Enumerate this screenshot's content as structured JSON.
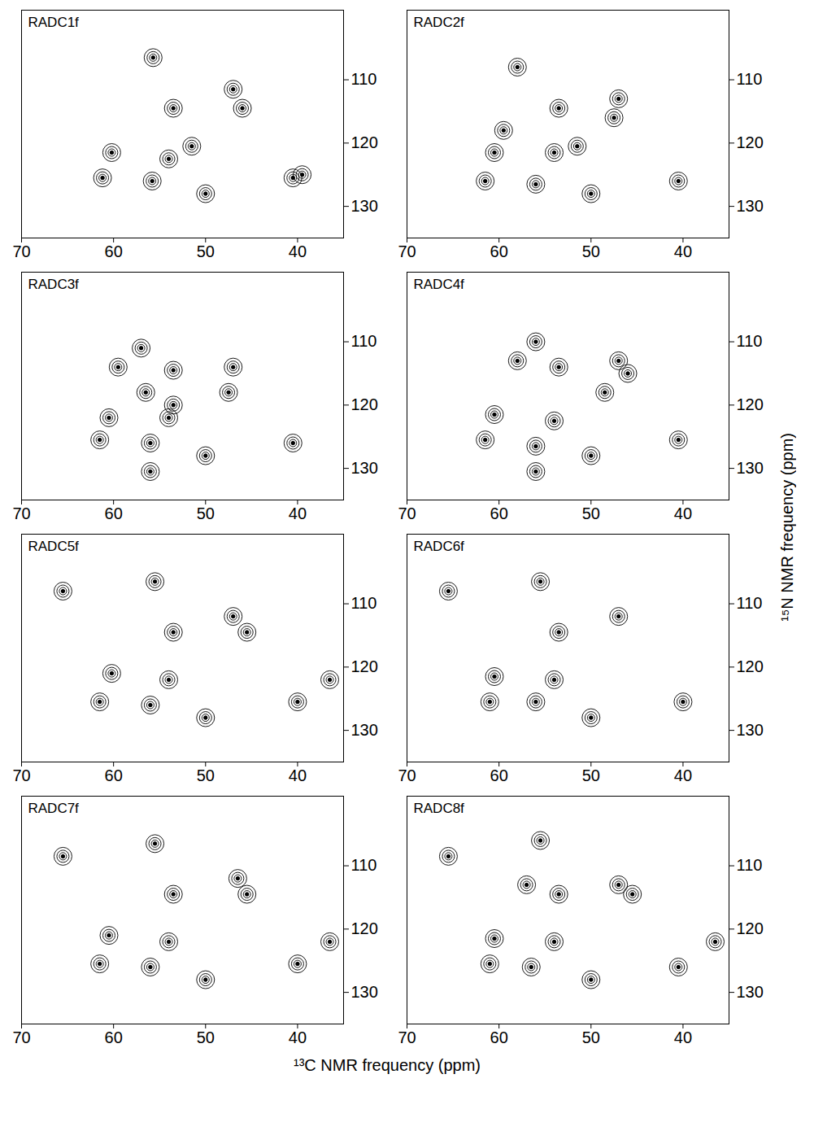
{
  "chart_data": {
    "type": "scatter",
    "x_label": "¹³C NMR frequency (ppm)",
    "y_label": "¹⁵N NMR frequency (ppm)",
    "xlim": [
      70,
      35
    ],
    "ylim": [
      135,
      99
    ],
    "xticks": [
      70,
      60,
      50,
      40
    ],
    "yticks": [
      110,
      120,
      130
    ],
    "color": "#000000",
    "panels": [
      {
        "title": "RADC1f",
        "x": [
          61.2,
          60.2,
          55.7,
          53.5,
          55.8,
          54,
          50,
          47,
          46,
          40.5,
          39.5,
          51.5
        ],
        "values": [
          125.5,
          121.5,
          106.5,
          114.5,
          126,
          122.5,
          128,
          111.5,
          114.5,
          125.5,
          125,
          120.5
        ]
      },
      {
        "title": "RADC2f",
        "x": [
          61.5,
          60.5,
          59.5,
          58,
          53.5,
          56,
          54,
          50,
          47,
          47.5,
          40.5,
          51.5
        ],
        "values": [
          126,
          121.5,
          118,
          108,
          114.5,
          126.5,
          121.5,
          128,
          113,
          116,
          126,
          120.5
        ]
      },
      {
        "title": "RADC3f",
        "x": [
          61.5,
          60.5,
          57,
          59.5,
          53.5,
          56,
          54,
          53.5,
          56,
          50,
          47,
          47.5,
          40.5,
          56.5
        ],
        "values": [
          125.5,
          122,
          111,
          114,
          114.5,
          126,
          122,
          120,
          130.5,
          128,
          114,
          118,
          126,
          118
        ]
      },
      {
        "title": "RADC4f",
        "x": [
          61.5,
          60.5,
          56,
          53.5,
          56,
          54,
          56,
          50,
          47,
          46,
          48.5,
          40.5,
          58
        ],
        "values": [
          125.5,
          121.5,
          110,
          114,
          126.5,
          122.5,
          130.5,
          128,
          113,
          115,
          118,
          125.5,
          113
        ]
      },
      {
        "title": "RADC5f",
        "x": [
          61.5,
          60.2,
          55.5,
          53.5,
          56,
          54,
          50,
          47,
          45.5,
          40,
          36.5,
          65.5
        ],
        "values": [
          125.5,
          121,
          106.5,
          114.5,
          126,
          122,
          128,
          112,
          114.5,
          125.5,
          122,
          108
        ]
      },
      {
        "title": "RADC6f",
        "x": [
          61,
          60.5,
          55.5,
          53.5,
          56,
          54,
          50,
          47,
          40,
          65.5
        ],
        "values": [
          125.5,
          121.5,
          106.5,
          114.5,
          125.5,
          122,
          128,
          112,
          125.5,
          108
        ]
      },
      {
        "title": "RADC7f",
        "x": [
          61.5,
          60.5,
          55.5,
          53.5,
          56,
          54,
          50,
          46.5,
          45.5,
          40,
          36.5,
          65.5
        ],
        "values": [
          125.5,
          121,
          106.5,
          114.5,
          126,
          122,
          128,
          112,
          114.5,
          125.5,
          122,
          108.5
        ]
      },
      {
        "title": "RADC8f",
        "x": [
          61,
          60.5,
          55.5,
          53.5,
          56.5,
          54,
          50,
          47,
          45.5,
          40.5,
          36.5,
          65.5,
          57
        ],
        "values": [
          125.5,
          121.5,
          106,
          114.5,
          126,
          122,
          128,
          113,
          114.5,
          126,
          122,
          108.5,
          113
        ]
      }
    ]
  }
}
